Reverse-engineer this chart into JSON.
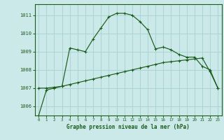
{
  "title": "Graphe pression niveau de la mer (hPa)",
  "bg_color": "#cce9e9",
  "grid_color": "#aad4d4",
  "line_color": "#1a5c1a",
  "series1": {
    "x": [
      0,
      1,
      2,
      3,
      4,
      5,
      6,
      7,
      8,
      9,
      10,
      11,
      12,
      13,
      14,
      15,
      16,
      17,
      18,
      19,
      20,
      21,
      22,
      23
    ],
    "y": [
      1005.5,
      1006.9,
      1007.0,
      1007.1,
      1009.2,
      1009.1,
      1009.0,
      1009.7,
      1010.3,
      1010.9,
      1011.1,
      1011.1,
      1011.0,
      1010.65,
      1010.2,
      1009.15,
      1009.25,
      1009.1,
      1008.85,
      1008.7,
      1008.7,
      1008.2,
      1008.0,
      1007.0
    ]
  },
  "series2": {
    "x": [
      0,
      1,
      2,
      3,
      4,
      5,
      6,
      7,
      8,
      9,
      10,
      11,
      12,
      13,
      14,
      15,
      16,
      17,
      18,
      19,
      20,
      21,
      22,
      23
    ],
    "y": [
      1007.0,
      1007.0,
      1007.05,
      1007.1,
      1007.2,
      1007.3,
      1007.4,
      1007.5,
      1007.6,
      1007.7,
      1007.8,
      1007.9,
      1008.0,
      1008.1,
      1008.2,
      1008.3,
      1008.4,
      1008.45,
      1008.5,
      1008.55,
      1008.6,
      1008.65,
      1007.9,
      1007.0
    ]
  },
  "ylim": [
    1005.5,
    1011.6
  ],
  "yticks": [
    1006,
    1007,
    1008,
    1009,
    1010,
    1011
  ],
  "xlim": [
    -0.5,
    23.5
  ],
  "xticks": [
    0,
    1,
    2,
    3,
    4,
    5,
    6,
    7,
    8,
    9,
    10,
    11,
    12,
    13,
    14,
    15,
    16,
    17,
    18,
    19,
    20,
    21,
    22,
    23
  ]
}
